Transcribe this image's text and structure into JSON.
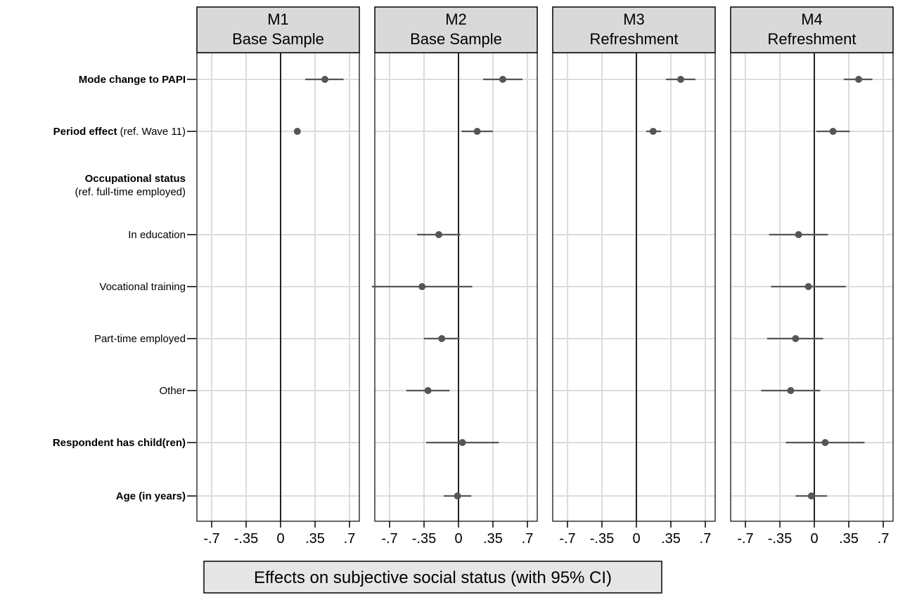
{
  "chart_data": {
    "type": "coefficient-plot",
    "panels": [
      {
        "title_line1": "M1",
        "title_line2": "Base Sample"
      },
      {
        "title_line1": "M2",
        "title_line2": "Base Sample"
      },
      {
        "title_line1": "M3",
        "title_line2": "Refreshment"
      },
      {
        "title_line1": "M4",
        "title_line2": "Refreshment"
      }
    ],
    "rows": [
      {
        "label_bold": "Mode change to PAPI",
        "label_normal": ""
      },
      {
        "label_bold": "Period effect",
        "label_normal": " (ref. Wave 11)"
      },
      {
        "label_bold": "Occupational status",
        "label_sub": "(ref. full-time employed)",
        "is_header": true
      },
      {
        "label_bold": "",
        "label_normal": "In education"
      },
      {
        "label_bold": "",
        "label_normal": "Vocational training"
      },
      {
        "label_bold": "",
        "label_normal": "Part-time employed"
      },
      {
        "label_bold": "",
        "label_normal": "Other"
      },
      {
        "label_bold": "Respondent has child(ren)",
        "label_normal": ""
      },
      {
        "label_bold": "Age (in years)",
        "label_normal": ""
      }
    ],
    "x_ticks": [
      -0.7,
      -0.35,
      0,
      0.35,
      0.7
    ],
    "x_tick_labels": [
      "-.7",
      "-.35",
      "0",
      ".35",
      ".7"
    ],
    "xlim": [
      -0.85,
      0.8
    ],
    "grid": true,
    "estimates": [
      [
        {
          "est": 0.45,
          "lo": 0.25,
          "hi": 0.64
        },
        {
          "est": 0.17,
          "lo": 0.14,
          "hi": 0.2
        },
        null,
        null,
        null,
        null,
        null,
        null,
        null
      ],
      [
        {
          "est": 0.45,
          "lo": 0.25,
          "hi": 0.65
        },
        {
          "est": 0.19,
          "lo": 0.03,
          "hi": 0.35
        },
        null,
        {
          "est": -0.2,
          "lo": -0.42,
          "hi": 0.02
        },
        {
          "est": -0.37,
          "lo": -0.88,
          "hi": 0.14
        },
        {
          "est": -0.17,
          "lo": -0.35,
          "hi": 0.01
        },
        {
          "est": -0.31,
          "lo": -0.53,
          "hi": -0.09
        },
        {
          "est": 0.04,
          "lo": -0.33,
          "hi": 0.41
        },
        {
          "est": -0.01,
          "lo": -0.15,
          "hi": 0.13
        }
      ],
      [
        {
          "est": 0.45,
          "lo": 0.3,
          "hi": 0.6
        },
        {
          "est": 0.17,
          "lo": 0.1,
          "hi": 0.25
        },
        null,
        null,
        null,
        null,
        null,
        null,
        null
      ],
      [
        {
          "est": 0.45,
          "lo": 0.3,
          "hi": 0.59
        },
        {
          "est": 0.19,
          "lo": 0.02,
          "hi": 0.36
        },
        null,
        {
          "est": -0.16,
          "lo": -0.46,
          "hi": 0.14
        },
        {
          "est": -0.06,
          "lo": -0.44,
          "hi": 0.32
        },
        {
          "est": -0.19,
          "lo": -0.48,
          "hi": 0.09
        },
        {
          "est": -0.24,
          "lo": -0.54,
          "hi": 0.06
        },
        {
          "est": 0.11,
          "lo": -0.29,
          "hi": 0.51
        },
        {
          "est": -0.03,
          "lo": -0.19,
          "hi": 0.13
        }
      ]
    ],
    "xlabel": "Effects on subjective social status (with 95% CI)",
    "colors": {
      "marker": "#555555",
      "ci_line": "#555555",
      "zero_line": "#222222",
      "grid": "#dcdcdc",
      "header_fill": "#d9d9d9",
      "footer_fill": "#e6e6e6"
    }
  }
}
